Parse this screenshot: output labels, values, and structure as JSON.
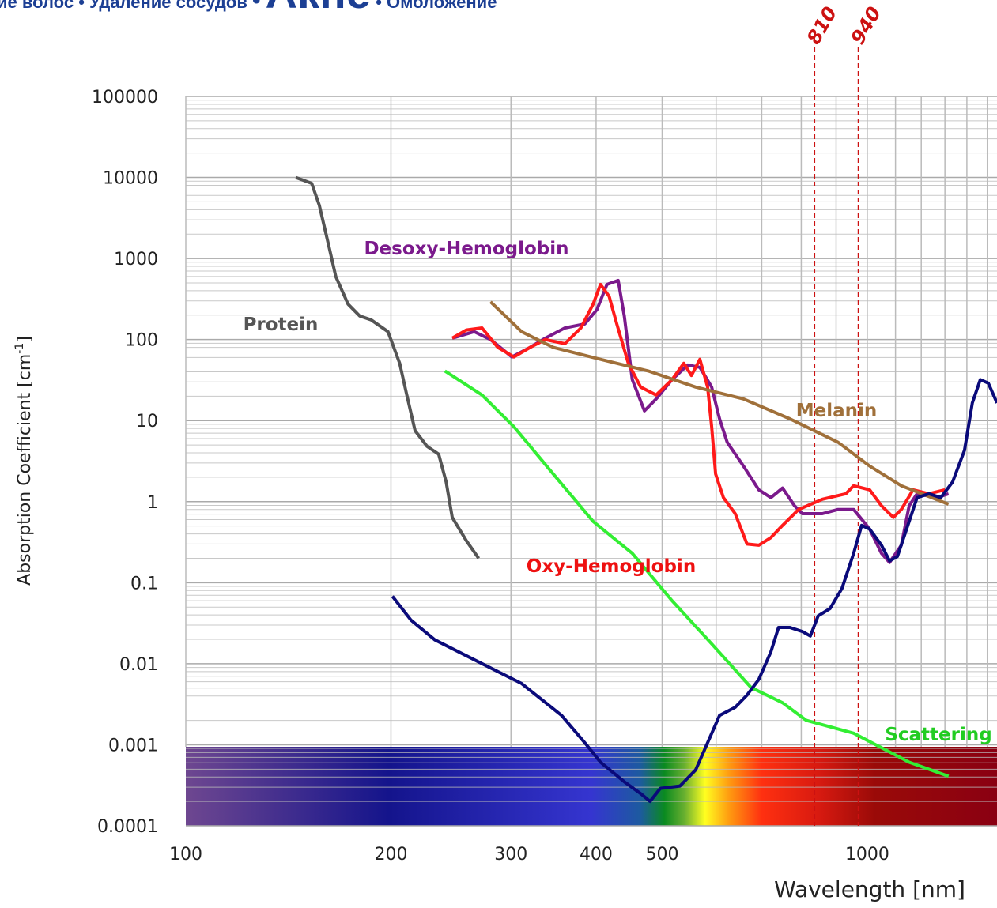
{
  "header": {
    "items": [
      "ие волос",
      "Удаление сосудов",
      "Акне",
      "Омоложение"
    ],
    "separator": "•"
  },
  "chart_data": {
    "type": "line",
    "xlabel": "Wavelength [nm]",
    "ylabel": "Absorption Coefficient [cm",
    "ylabel_sup": "-1",
    "ylabel_end": "]",
    "xlog": true,
    "ylog": true,
    "grid": true,
    "xlim": [
      100,
      1550
    ],
    "ylim": [
      0.0001,
      100000
    ],
    "xticks": [
      100,
      200,
      300,
      400,
      500,
      1000
    ],
    "xgrid": [
      100,
      200,
      300,
      400,
      500,
      600,
      700,
      800,
      900,
      1000,
      1100,
      1200,
      1300,
      1400,
      1500
    ],
    "yticks": [
      0.0001,
      0.001,
      0.01,
      0.1,
      1,
      10,
      100,
      1000,
      10000,
      100000
    ],
    "reference_lines": [
      810,
      940
    ],
    "reference_color": "#cc1111",
    "series": [
      {
        "name": "Protein",
        "color": "#555555",
        "x": [
          145,
          153,
          157,
          162,
          166,
          173,
          180,
          187,
          198,
          206,
          211,
          217,
          226,
          235,
          241,
          246,
          258,
          269
        ],
        "values": [
          10000,
          8470,
          4520,
          1470,
          600,
          274,
          195,
          175,
          125,
          51,
          20.7,
          7.5,
          4.8,
          3.85,
          1.75,
          0.64,
          0.33,
          0.2
        ]
      },
      {
        "name": "Desoxy-Hemoglobin",
        "color": "#7b1a8c",
        "x": [
          246,
          265,
          280,
          301,
          320,
          337,
          360,
          385,
          401,
          415,
          431,
          440,
          452,
          471,
          490,
          517,
          545,
          568,
          591,
          607,
          623,
          658,
          693,
          722,
          751,
          782,
          803,
          859,
          906,
          955,
          1008,
          1049,
          1078,
          1122,
          1152,
          1183,
          1265,
          1316
        ],
        "values": [
          104,
          125,
          100,
          61,
          80,
          104,
          139,
          156,
          233,
          479,
          536,
          195,
          32,
          13.2,
          18.5,
          32,
          48.5,
          45.4,
          25.9,
          10.5,
          5.4,
          2.75,
          1.4,
          1.12,
          1.47,
          0.89,
          0.71,
          0.71,
          0.8,
          0.8,
          0.46,
          0.23,
          0.178,
          0.29,
          0.89,
          1.25,
          1.12,
          1.25
        ]
      },
      {
        "name": "Oxy-Hemoglobin",
        "color": "#ff1a1a",
        "x": [
          246,
          258,
          272,
          287,
          303,
          320,
          337,
          360,
          380,
          396,
          406,
          418,
          429,
          446,
          465,
          490,
          517,
          538,
          552,
          568,
          583,
          591,
          599,
          615,
          640,
          666,
          693,
          722,
          751,
          793,
          859,
          930,
          955,
          1008,
          1049,
          1092,
          1122,
          1167,
          1231,
          1300
        ],
        "values": [
          104,
          131,
          139,
          80,
          61,
          80,
          100,
          89,
          139,
          274,
          479,
          342,
          156,
          51,
          25.9,
          20.7,
          32,
          51,
          36,
          57,
          25.9,
          8.4,
          2.2,
          1.12,
          0.71,
          0.3,
          0.29,
          0.36,
          0.51,
          0.8,
          1.07,
          1.25,
          1.57,
          1.4,
          0.89,
          0.64,
          0.8,
          1.4,
          1.25,
          1.4
        ]
      },
      {
        "name": "Melanin",
        "color": "#a0703a",
        "x": [
          280,
          311,
          346,
          406,
          477,
          560,
          658,
          770,
          906,
          1008,
          1122,
          1316
        ],
        "values": [
          292,
          125,
          80,
          57,
          41,
          25.9,
          18.5,
          10.5,
          5.4,
          2.75,
          1.57,
          0.93
        ]
      },
      {
        "name": "Scattering",
        "color": "#33ee33",
        "x": [
          240,
          272,
          303,
          346,
          396,
          452,
          517,
          591,
          675,
          751,
          814,
          955,
          1152,
          1316
        ],
        "values": [
          41,
          20.7,
          8.4,
          2.2,
          0.57,
          0.23,
          0.06,
          0.0176,
          0.0051,
          0.0033,
          0.002,
          0.00139,
          0.00061,
          0.00041
        ]
      },
      {
        "color": "#0a0a7a",
        "x": [
          201,
          214,
          232,
          265,
          311,
          356,
          385,
          406,
          440,
          465,
          480,
          497,
          531,
          560,
          583,
          607,
          640,
          666,
          693,
          722,
          741,
          770,
          803,
          825,
          847,
          882,
          918,
          955,
          981,
          1008,
          1049,
          1078,
          1107,
          1152,
          1183,
          1232,
          1282,
          1334,
          1389,
          1426,
          1465,
          1505,
          1550
        ],
        "values": [
          0.068,
          0.0345,
          0.0197,
          0.0112,
          0.0057,
          0.0023,
          0.00106,
          0.00061,
          0.00035,
          0.00025,
          0.0002,
          0.00029,
          0.00031,
          0.00049,
          0.00106,
          0.0023,
          0.0029,
          0.0041,
          0.0064,
          0.014,
          0.028,
          0.028,
          0.025,
          0.022,
          0.039,
          0.048,
          0.085,
          0.23,
          0.51,
          0.46,
          0.29,
          0.186,
          0.21,
          0.57,
          1.12,
          1.25,
          1.12,
          1.75,
          4.3,
          16.5,
          32,
          29,
          16.5
        ]
      }
    ]
  }
}
